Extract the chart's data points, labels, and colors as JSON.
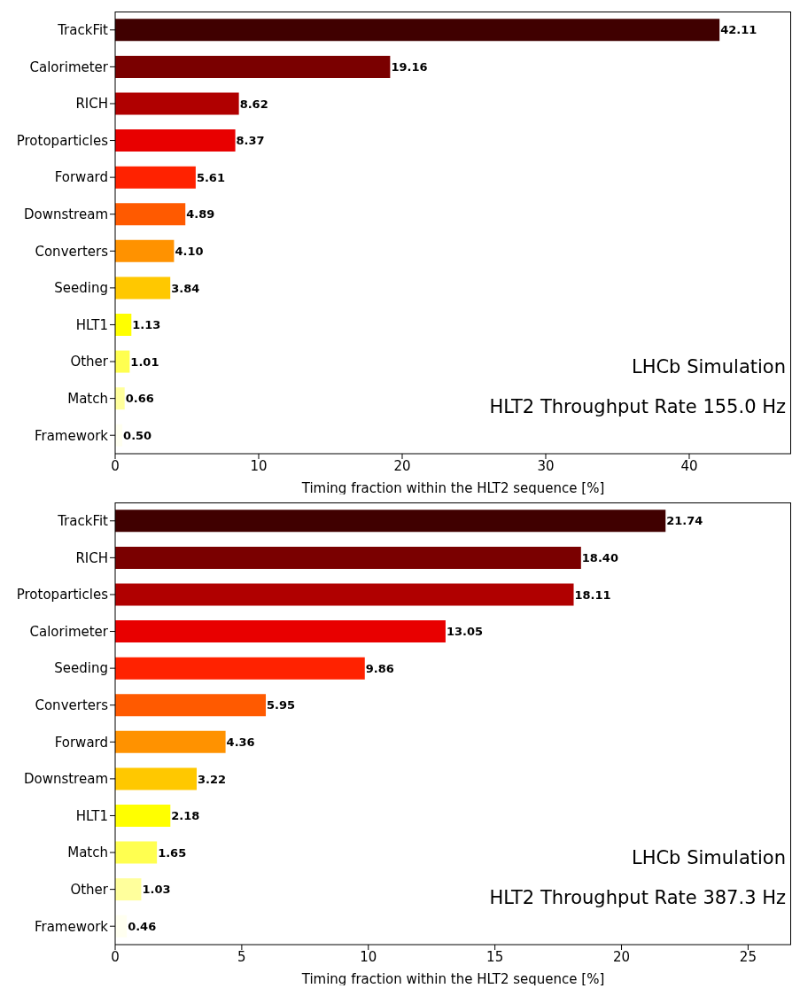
{
  "chart_data": [
    {
      "type": "bar",
      "orientation": "horizontal",
      "categories": [
        "TrackFit",
        "Calorimeter",
        "RICH",
        "Protoparticles",
        "Forward",
        "Downstream",
        "Converters",
        "Seeding",
        "HLT1",
        "Other",
        "Match",
        "Framework"
      ],
      "values": [
        42.11,
        19.16,
        8.62,
        8.37,
        5.61,
        4.89,
        4.1,
        3.84,
        1.13,
        1.01,
        0.66,
        0.5
      ],
      "value_labels": [
        "42.11",
        "19.16",
        "8.62",
        "8.37",
        "5.61",
        "4.89",
        "4.10",
        "3.84",
        "1.13",
        "1.01",
        "0.66",
        "0.50"
      ],
      "colors": [
        "#400000",
        "#7a0000",
        "#b00000",
        "#e80000",
        "#ff2200",
        "#ff5a00",
        "#ff9200",
        "#ffc800",
        "#ffff00",
        "#ffff50",
        "#ffff9c",
        "#fffff0"
      ],
      "xlabel": "Timing fraction within the HLT2 sequence [%]",
      "xlim": [
        0,
        47.1
      ],
      "xticks": [
        0,
        10,
        20,
        30,
        40
      ],
      "annotations": [
        "LHCb Simulation",
        "HLT2 Throughput Rate 155.0 Hz"
      ]
    },
    {
      "type": "bar",
      "orientation": "horizontal",
      "categories": [
        "TrackFit",
        "RICH",
        "Protoparticles",
        "Calorimeter",
        "Seeding",
        "Converters",
        "Forward",
        "Downstream",
        "HLT1",
        "Match",
        "Other",
        "Framework"
      ],
      "values": [
        21.74,
        18.4,
        18.11,
        13.05,
        9.86,
        5.95,
        4.36,
        3.22,
        2.18,
        1.65,
        1.03,
        0.46
      ],
      "value_labels": [
        "21.74",
        "18.40",
        "18.11",
        "13.05",
        "9.86",
        "5.95",
        "4.36",
        "3.22",
        "2.18",
        "1.65",
        "1.03",
        "0.46"
      ],
      "colors": [
        "#400000",
        "#7a0000",
        "#b00000",
        "#e80000",
        "#ff2200",
        "#ff5a00",
        "#ff9200",
        "#ffc800",
        "#ffff00",
        "#ffff50",
        "#ffff9c",
        "#fffff0"
      ],
      "xlabel": "Timing fraction within the HLT2 sequence [%]",
      "xlim": [
        0,
        26.7
      ],
      "xticks": [
        0,
        5,
        10,
        15,
        20,
        25
      ],
      "annotations": [
        "LHCb Simulation",
        "HLT2 Throughput Rate 387.3 Hz"
      ]
    }
  ]
}
